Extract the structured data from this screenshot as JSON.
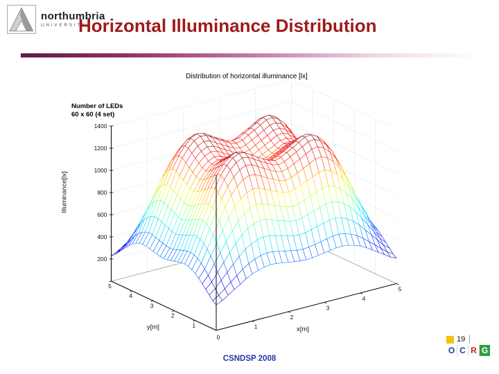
{
  "slide": {
    "logo": {
      "line1": "northumbria",
      "line2": "UNIVERSITY"
    },
    "title": "Horizontal Illuminance Distribution",
    "footer": "CSNDSP 2008",
    "page_number": "19",
    "ocrg": {
      "letters": [
        "O",
        "C",
        "R",
        "G"
      ]
    }
  },
  "colors": {
    "title": "#9e1a1a",
    "footer": "#2436a5",
    "ocrg_square": "#f2c40f",
    "ocrg_letter_colors": [
      "#1f3a93",
      "#1f3a93",
      "#c0272d",
      "#ffffff"
    ],
    "ocrg_letter_bg": [
      "#ffffff",
      "#ffffff",
      "#ffffff",
      "#2e9e43"
    ]
  },
  "chart_data": {
    "type": "heatmap",
    "subtype": "3d-surface-mesh",
    "title": "Distribution of horizontal illuminance [lx]",
    "annotation_line1": "Number of LEDs",
    "annotation_line2": "60 x 60 (4 set)",
    "xlabel": "x[m]",
    "ylabel": "y[m]",
    "zlabel": "Illuminance[lx]",
    "x_ticks": [
      0,
      1,
      2,
      3,
      4,
      5
    ],
    "y_ticks": [
      0,
      1,
      2,
      3,
      4,
      5
    ],
    "z_ticks": [
      200,
      400,
      600,
      800,
      1000,
      1200,
      1400
    ],
    "zlim": [
      0,
      1400
    ],
    "colormap": "jet",
    "grid": true,
    "x": [
      0,
      0.5,
      1,
      1.5,
      2,
      2.5,
      3,
      3.5,
      4,
      4.5,
      5
    ],
    "y": [
      0,
      0.5,
      1,
      1.5,
      2,
      2.5,
      3,
      3.5,
      4,
      4.5,
      5
    ],
    "z_grid": [
      [
        230,
        326,
        424,
        466,
        446,
        426,
        446,
        466,
        424,
        326,
        230
      ],
      [
        326,
        527,
        732,
        820,
        779,
        736,
        779,
        820,
        732,
        527,
        326
      ],
      [
        424,
        732,
        1046,
        1182,
        1118,
        1052,
        1118,
        1182,
        1046,
        732,
        424
      ],
      [
        466,
        820,
        1182,
        1337,
        1264,
        1189,
        1264,
        1337,
        1182,
        820,
        466
      ],
      [
        446,
        779,
        1118,
        1264,
        1195,
        1124,
        1195,
        1264,
        1118,
        779,
        446
      ],
      [
        426,
        736,
        1052,
        1189,
        1124,
        1058,
        1124,
        1189,
        1052,
        736,
        426
      ],
      [
        446,
        779,
        1118,
        1264,
        1195,
        1124,
        1195,
        1264,
        1118,
        779,
        446
      ],
      [
        466,
        820,
        1182,
        1337,
        1264,
        1189,
        1264,
        1337,
        1182,
        820,
        466
      ],
      [
        424,
        732,
        1046,
        1182,
        1118,
        1052,
        1118,
        1182,
        1046,
        732,
        424
      ],
      [
        326,
        527,
        732,
        820,
        779,
        736,
        779,
        820,
        732,
        527,
        326
      ],
      [
        230,
        326,
        424,
        466,
        446,
        426,
        446,
        466,
        424,
        326,
        230
      ]
    ]
  }
}
